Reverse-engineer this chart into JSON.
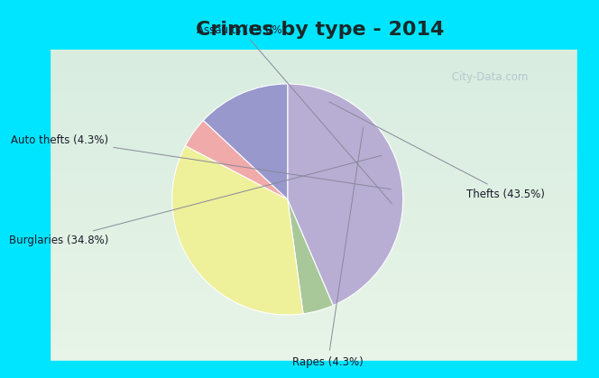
{
  "title": "Crimes by type - 2014",
  "labels": [
    "Thefts",
    "Rapes",
    "Burglaries",
    "Auto thefts",
    "Assaults"
  ],
  "values": [
    43.5,
    4.3,
    34.8,
    4.3,
    13.0
  ],
  "colors": [
    "#b8aed4",
    "#a8c89a",
    "#eef09a",
    "#f0aaaa",
    "#9898cc"
  ],
  "label_texts": [
    "Thefts (43.5%)",
    "Rapes (4.3%)",
    "Burglaries (34.8%)",
    "Auto thefts (4.3%)",
    "Assaults (13.0%)"
  ],
  "background_top": "#00e5ff",
  "background_main_top": "#d8ede0",
  "background_main_bottom": "#e8f5e8",
  "title_fontsize": 16,
  "label_fontsize": 8.5,
  "watermark": " City-Data.com"
}
